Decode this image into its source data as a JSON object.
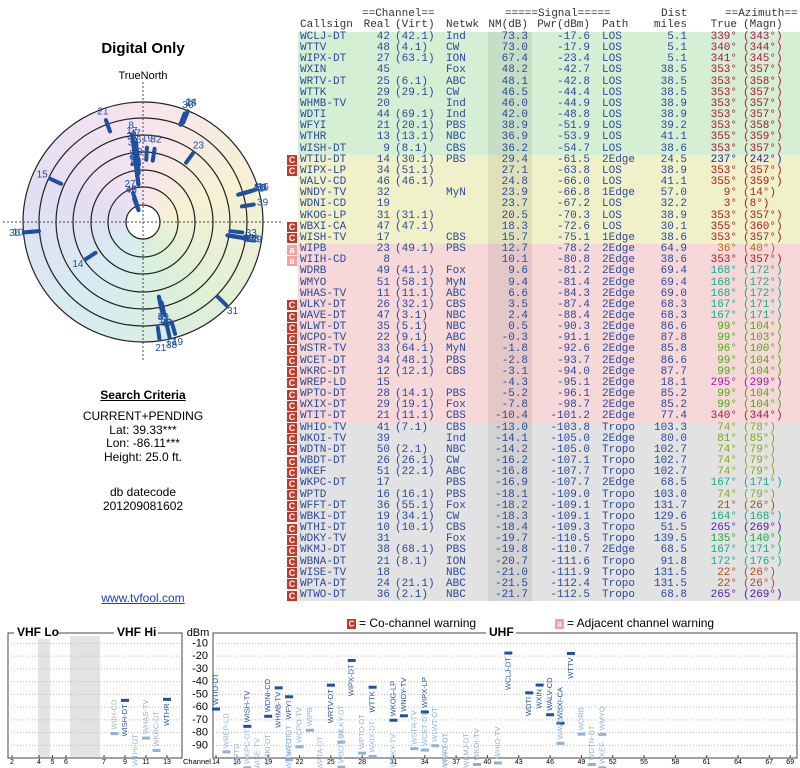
{
  "polar": {
    "title": "Digital Only",
    "north_label": "TrueNorth"
  },
  "search": {
    "title": "Search Criteria",
    "lines": [
      "CURRENT+PENDING",
      "Lat: 39.33***",
      "Lon: -86.11***",
      "Height: 25.0 ft."
    ],
    "datecode_label": "db datecode",
    "datecode": "201209081602",
    "link": "www.tvfool.com"
  },
  "table": {
    "header1": [
      "==Channel==",
      "=====Signal=====",
      "Dist",
      "==Azimuth=="
    ],
    "header2": [
      "Callsign",
      "Real",
      "(Virt)",
      "Netwk",
      "NM(dB)",
      "Pwr(dBm)",
      "Path",
      "miles",
      "True",
      "(Magn)"
    ],
    "rows": [
      {
        "callsign": "WCLJ-DT",
        "real": 42,
        "virt": "(42.1)",
        "netwk": "Ind",
        "nm": "73.3",
        "pwr": "-17.6",
        "path": "LOS",
        "dist": "5.1",
        "true": "339°",
        "magn": "(343°)"
      },
      {
        "callsign": "WTTV",
        "real": 48,
        "virt": "(4.1)",
        "netwk": "CW",
        "nm": "73.0",
        "pwr": "-17.9",
        "path": "LOS",
        "dist": "5.1",
        "true": "340°",
        "magn": "(344°)"
      },
      {
        "callsign": "WIPX-DT",
        "real": 27,
        "virt": "(63.1)",
        "netwk": "ION",
        "nm": "67.4",
        "pwr": "-23.4",
        "path": "LOS",
        "dist": "5.1",
        "true": "341°",
        "magn": "(345°)"
      },
      {
        "callsign": "WXIN",
        "real": 45,
        "netwk": "Fox",
        "nm": "48.2",
        "pwr": "-42.7",
        "path": "LOS",
        "dist": "38.5",
        "true": "353°",
        "magn": "(357°)"
      },
      {
        "callsign": "WRTV-DT",
        "real": 25,
        "virt": "(6.1)",
        "netwk": "ABC",
        "nm": "48.1",
        "pwr": "-42.8",
        "path": "LOS",
        "dist": "38.5",
        "true": "353°",
        "magn": "(358°)"
      },
      {
        "callsign": "WTTK",
        "real": 29,
        "virt": "(29.1)",
        "netwk": "CW",
        "nm": "46.5",
        "pwr": "-44.4",
        "path": "LOS",
        "dist": "38.5",
        "true": "353°",
        "magn": "(357°)"
      },
      {
        "callsign": "WHMB-TV",
        "real": 20,
        "netwk": "Ind",
        "nm": "46.0",
        "pwr": "-44.9",
        "path": "LOS",
        "dist": "38.9",
        "true": "353°",
        "magn": "(357°)"
      },
      {
        "callsign": "WDTI",
        "real": 44,
        "virt": "(69.1)",
        "netwk": "Ind",
        "nm": "42.0",
        "pwr": "-48.8",
        "path": "LOS",
        "dist": "38.9",
        "true": "353°",
        "magn": "(357°)"
      },
      {
        "callsign": "WFYI",
        "real": 21,
        "virt": "(20.1)",
        "netwk": "PBS",
        "nm": "38.9",
        "pwr": "-51.9",
        "path": "LOS",
        "dist": "39.2",
        "true": "353°",
        "magn": "(358°)"
      },
      {
        "callsign": "WTHR",
        "real": 13,
        "virt": "(13.1)",
        "netwk": "NBC",
        "nm": "36.9",
        "pwr": "-53.9",
        "path": "LOS",
        "dist": "41.1",
        "true": "355°",
        "magn": "(359°)"
      },
      {
        "callsign": "WISH-DT",
        "real": 9,
        "virt": "(8.1)",
        "netwk": "CBS",
        "nm": "36.2",
        "pwr": "-54.7",
        "path": "LOS",
        "dist": "38.6",
        "true": "353°",
        "magn": "(357°)"
      },
      {
        "flag": "C",
        "callsign": "WTIU-DT",
        "real": 14,
        "virt": "(30.1)",
        "netwk": "PBS",
        "nm": "29.4",
        "pwr": "-61.5",
        "path": "2Edge",
        "dist": "24.5",
        "true": "237°",
        "magn": "(242°)"
      },
      {
        "flag": "C",
        "callsign": "WIPX-LP",
        "real": 34,
        "virt": "(51.1)",
        "nm": "27.1",
        "pwr": "-63.8",
        "path": "LOS",
        "dist": "38.9",
        "true": "353°",
        "magn": "(357°)"
      },
      {
        "callsign": "WALV-CD",
        "real": 46,
        "virt": "(46.1)",
        "nm": "24.8",
        "pwr": "-66.0",
        "path": "LOS",
        "dist": "41.1",
        "true": "355°",
        "magn": "(359°)"
      },
      {
        "callsign": "WNDY-TV",
        "real": 32,
        "netwk": "MyN",
        "nm": "23.9",
        "pwr": "-66.8",
        "path": "1Edge",
        "dist": "57.0",
        "true": "9°",
        "magn": "(14°)"
      },
      {
        "callsign": "WDNI-CD",
        "real": 19,
        "nm": "23.7",
        "pwr": "-67.2",
        "path": "LOS",
        "dist": "32.2",
        "true": "3°",
        "magn": "(8°)"
      },
      {
        "callsign": "WKOG-LP",
        "real": 31,
        "virt": "(31.1)",
        "nm": "20.5",
        "pwr": "-70.3",
        "path": "LOS",
        "dist": "38.9",
        "true": "353°",
        "magn": "(357°)"
      },
      {
        "flag": "C",
        "callsign": "WBXI-CA",
        "real": 47,
        "virt": "(47.1)",
        "nm": "18.3",
        "pwr": "-72.6",
        "path": "LOS",
        "dist": "30.1",
        "true": "355°",
        "magn": "(360°)"
      },
      {
        "flag": "C",
        "callsign": "WISH-TV",
        "real": 17,
        "netwk": "CBS",
        "nm": "15.7",
        "pwr": "-75.1",
        "path": "1Edge",
        "dist": "38.6",
        "true": "353°",
        "magn": "(357°)"
      },
      {
        "flag": "a",
        "callsign": "WIPB",
        "real": 23,
        "virt": "(49.1)",
        "netwk": "PBS",
        "nm": "12.7",
        "pwr": "-78.2",
        "path": "2Edge",
        "dist": "64.9",
        "true": "36°",
        "magn": "(40°)"
      },
      {
        "flag": "a",
        "callsign": "WIIH-CD",
        "real": 8,
        "nm": "10.1",
        "pwr": "-80.8",
        "path": "2Edge",
        "dist": "38.6",
        "true": "353°",
        "magn": "(357°)"
      },
      {
        "callsign": "WDRB",
        "real": 49,
        "virt": "(41.1)",
        "netwk": "Fox",
        "nm": "9.6",
        "pwr": "-81.2",
        "path": "2Edge",
        "dist": "69.4",
        "true": "168°",
        "magn": "(172°)"
      },
      {
        "callsign": "WMYO",
        "real": 51,
        "virt": "(58.1)",
        "netwk": "MyN",
        "nm": "9.4",
        "pwr": "-81.4",
        "path": "2Edge",
        "dist": "69.4",
        "true": "168°",
        "magn": "(172°)"
      },
      {
        "callsign": "WHAS-TV",
        "real": 11,
        "virt": "(11.1)",
        "netwk": "ABC",
        "nm": "6.6",
        "pwr": "-84.3",
        "path": "2Edge",
        "dist": "69.0",
        "true": "168°",
        "magn": "(172°)"
      },
      {
        "flag": "C",
        "callsign": "WLKY-DT",
        "real": 26,
        "virt": "(32.1)",
        "netwk": "CBS",
        "nm": "3.5",
        "pwr": "-87.4",
        "path": "2Edge",
        "dist": "68.3",
        "true": "167°",
        "magn": "(171°)"
      },
      {
        "flag": "C",
        "callsign": "WAVE-DT",
        "real": 47,
        "virt": "(3.1)",
        "netwk": "NBC",
        "nm": "2.4",
        "pwr": "-88.4",
        "path": "2Edge",
        "dist": "68.3",
        "true": "167°",
        "magn": "(171°)"
      },
      {
        "flag": "C",
        "callsign": "WLWT-DT",
        "real": 35,
        "virt": "(5.1)",
        "netwk": "NBC",
        "nm": "0.5",
        "pwr": "-90.3",
        "path": "2Edge",
        "dist": "86.6",
        "true": "99°",
        "magn": "(104°)"
      },
      {
        "flag": "C",
        "callsign": "WCPO-TV",
        "real": 22,
        "virt": "(9.1)",
        "netwk": "ABC",
        "nm": "-0.3",
        "pwr": "-91.1",
        "path": "2Edge",
        "dist": "87.8",
        "true": "99°",
        "magn": "(103°)"
      },
      {
        "flag": "C",
        "callsign": "WSTR-TV",
        "real": 33,
        "virt": "(64.1)",
        "netwk": "MyN",
        "nm": "-1.8",
        "pwr": "-92.6",
        "path": "2Edge",
        "dist": "85.8",
        "true": "96°",
        "magn": "(100°)"
      },
      {
        "flag": "C",
        "callsign": "WCET-DT",
        "real": 34,
        "virt": "(48.1)",
        "netwk": "PBS",
        "nm": "-2.8",
        "pwr": "-93.7",
        "path": "2Edge",
        "dist": "86.6",
        "true": "99°",
        "magn": "(104°)"
      },
      {
        "flag": "C",
        "callsign": "WKRC-DT",
        "real": 12,
        "virt": "(12.1)",
        "netwk": "CBS",
        "nm": "-3.1",
        "pwr": "-94.0",
        "path": "2Edge",
        "dist": "87.7",
        "true": "99°",
        "magn": "(104°)"
      },
      {
        "flag": "C",
        "callsign": "WREP-LD",
        "real": 15,
        "nm": "-4.3",
        "pwr": "-95.1",
        "path": "2Edge",
        "dist": "18.1",
        "true": "295°",
        "magn": "(299°)"
      },
      {
        "flag": "C",
        "callsign": "WPTO-DT",
        "real": 28,
        "virt": "(14.1)",
        "netwk": "PBS",
        "nm": "-5.2",
        "pwr": "-96.1",
        "path": "2Edge",
        "dist": "85.2",
        "true": "99°",
        "magn": "(104°)"
      },
      {
        "flag": "C",
        "callsign": "WXIX-DT",
        "real": 29,
        "virt": "(19.1)",
        "netwk": "Fox",
        "nm": "-7.8",
        "pwr": "-98.7",
        "path": "2Edge",
        "dist": "85.2",
        "true": "99°",
        "magn": "(104°)"
      },
      {
        "flag": "C",
        "callsign": "WTIT-DT",
        "real": 21,
        "virt": "(11.1)",
        "netwk": "CBS",
        "nm": "-10.4",
        "pwr": "-101.2",
        "path": "2Edge",
        "dist": "77.4",
        "true": "340°",
        "magn": "(344°)"
      },
      {
        "flag": "C",
        "callsign": "WHIO-TV",
        "real": 41,
        "virt": "(7.1)",
        "netwk": "CBS",
        "nm": "-13.0",
        "pwr": "-103.8",
        "path": "Tropo",
        "dist": "103.3",
        "true": "74°",
        "magn": "(78°)"
      },
      {
        "flag": "C",
        "callsign": "WKOI-TV",
        "real": 39,
        "netwk": "Ind",
        "nm": "-14.1",
        "pwr": "-105.0",
        "path": "2Edge",
        "dist": "80.0",
        "true": "81°",
        "magn": "(85°)"
      },
      {
        "flag": "C",
        "callsign": "WDTN-DT",
        "real": 50,
        "virt": "(2.1)",
        "netwk": "NBC",
        "nm": "-14.2",
        "pwr": "-105.0",
        "path": "Tropo",
        "dist": "102.7",
        "true": "74°",
        "magn": "(79°)"
      },
      {
        "flag": "C",
        "callsign": "WBDT-DT",
        "real": 26,
        "virt": "(26.1)",
        "netwk": "CW",
        "nm": "-16.2",
        "pwr": "-107.1",
        "path": "Tropo",
        "dist": "102.7",
        "true": "74°",
        "magn": "(79°)"
      },
      {
        "flag": "C",
        "callsign": "WKEF",
        "real": 51,
        "virt": "(22.1)",
        "netwk": "ABC",
        "nm": "-16.8",
        "pwr": "-107.7",
        "path": "Tropo",
        "dist": "102.7",
        "true": "74°",
        "magn": "(79°)"
      },
      {
        "flag": "C",
        "callsign": "WKPC-DT",
        "real": 17,
        "netwk": "PBS",
        "nm": "-16.9",
        "pwr": "-107.7",
        "path": "2Edge",
        "dist": "68.5",
        "true": "167°",
        "magn": "(171°)"
      },
      {
        "flag": "C",
        "callsign": "WPTD",
        "real": 16,
        "virt": "(16.1)",
        "netwk": "PBS",
        "nm": "-18.1",
        "pwr": "-109.0",
        "path": "Tropo",
        "dist": "103.0",
        "true": "74°",
        "magn": "(79°)"
      },
      {
        "flag": "C",
        "callsign": "WFFT-DT",
        "real": 36,
        "virt": "(55.1)",
        "netwk": "Fox",
        "nm": "-18.2",
        "pwr": "-109.1",
        "path": "Tropo",
        "dist": "131.7",
        "true": "21°",
        "magn": "(26°)"
      },
      {
        "flag": "C",
        "callsign": "WBKI-DT",
        "real": 19,
        "virt": "(34.1)",
        "netwk": "CW",
        "nm": "-18.3",
        "pwr": "-109.1",
        "path": "Tropo",
        "dist": "129.6",
        "true": "164°",
        "magn": "(168°)"
      },
      {
        "flag": "C",
        "callsign": "WTHI-DT",
        "real": 10,
        "virt": "(10.1)",
        "netwk": "CBS",
        "nm": "-18.4",
        "pwr": "-109.3",
        "path": "Tropo",
        "dist": "51.5",
        "true": "265°",
        "magn": "(269°)"
      },
      {
        "flag": "C",
        "callsign": "WDKY-TV",
        "real": 31,
        "netwk": "Fox",
        "nm": "-19.7",
        "pwr": "-110.5",
        "path": "Tropo",
        "dist": "139.5",
        "true": "135°",
        "magn": "(140°)"
      },
      {
        "flag": "C",
        "callsign": "WKMJ-DT",
        "real": 38,
        "virt": "(68.1)",
        "netwk": "PBS",
        "nm": "-19.8",
        "pwr": "-110.7",
        "path": "2Edge",
        "dist": "68.5",
        "true": "167°",
        "magn": "(171°)"
      },
      {
        "flag": "C",
        "callsign": "WBNA-DT",
        "real": 21,
        "virt": "(8.1)",
        "netwk": "ION",
        "nm": "-20.7",
        "pwr": "-111.6",
        "path": "Tropo",
        "dist": "91.8",
        "true": "172°",
        "magn": "(176°)"
      },
      {
        "flag": "C",
        "callsign": "WISE-TV",
        "real": 18,
        "netwk": "NBC",
        "nm": "-21.0",
        "pwr": "-111.9",
        "path": "Tropo",
        "dist": "131.5",
        "true": "22°",
        "magn": "(26°)"
      },
      {
        "flag": "C",
        "callsign": "WPTA-DT",
        "real": 24,
        "virt": "(21.1)",
        "netwk": "ABC",
        "nm": "-21.5",
        "pwr": "-112.4",
        "path": "Tropo",
        "dist": "131.5",
        "true": "22°",
        "magn": "(26°)"
      },
      {
        "flag": "C",
        "callsign": "WTWO-DT",
        "real": 36,
        "virt": "(2.1)",
        "netwk": "NBC",
        "nm": "-21.7",
        "pwr": "-112.5",
        "path": "Tropo",
        "dist": "68.8",
        "true": "265°",
        "magn": "(269°)"
      }
    ]
  },
  "spectrum": {
    "legend": [
      {
        "flag": "C",
        "text": "= Co-channel warning"
      },
      {
        "flag": "a",
        "text": "= Adjacent channel warning"
      }
    ],
    "vhf_lo_label": "VHF Lo",
    "vhf_hi_label": "VHF Hi",
    "uhf_label": "UHF",
    "ylabel": "dBm",
    "xlabel": "Channel",
    "ylim": [
      -5,
      -96
    ],
    "yticks": [
      -10,
      -20,
      -30,
      -40,
      -50,
      -60,
      -70,
      -80,
      -90
    ],
    "vhf_ticks": [
      2,
      4,
      5,
      6,
      7,
      9,
      11,
      13
    ],
    "uhf_ticks": [
      14,
      16,
      19,
      22,
      25,
      28,
      31,
      34,
      37,
      40,
      43,
      46,
      49,
      52,
      55,
      58,
      61,
      64,
      67,
      69
    ]
  }
}
